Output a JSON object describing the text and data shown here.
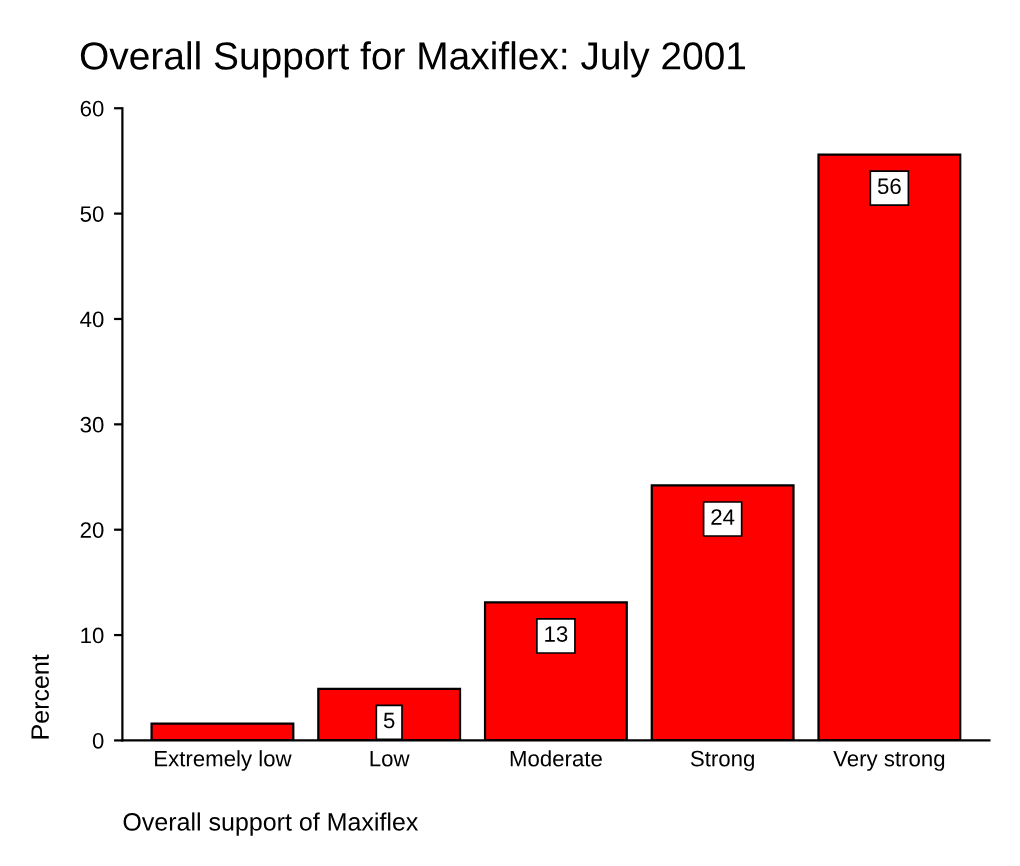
{
  "chart_data": {
    "type": "bar",
    "title": "Overall Support for Maxiflex: July 2001",
    "xlabel": "Overall support of Maxiflex",
    "ylabel": "Percent",
    "categories": [
      "Extremely low",
      "Low",
      "Moderate",
      "Strong",
      "Very strong"
    ],
    "values": [
      1.6,
      4.9,
      13.1,
      24.2,
      55.6
    ],
    "value_labels": [
      null,
      "5",
      "13",
      "24",
      "56"
    ],
    "color": "#ff0000",
    "ylim": [
      0,
      60
    ],
    "yticks": [
      0,
      10,
      20,
      30,
      40,
      50,
      60
    ],
    "grid": false,
    "legend": false
  }
}
